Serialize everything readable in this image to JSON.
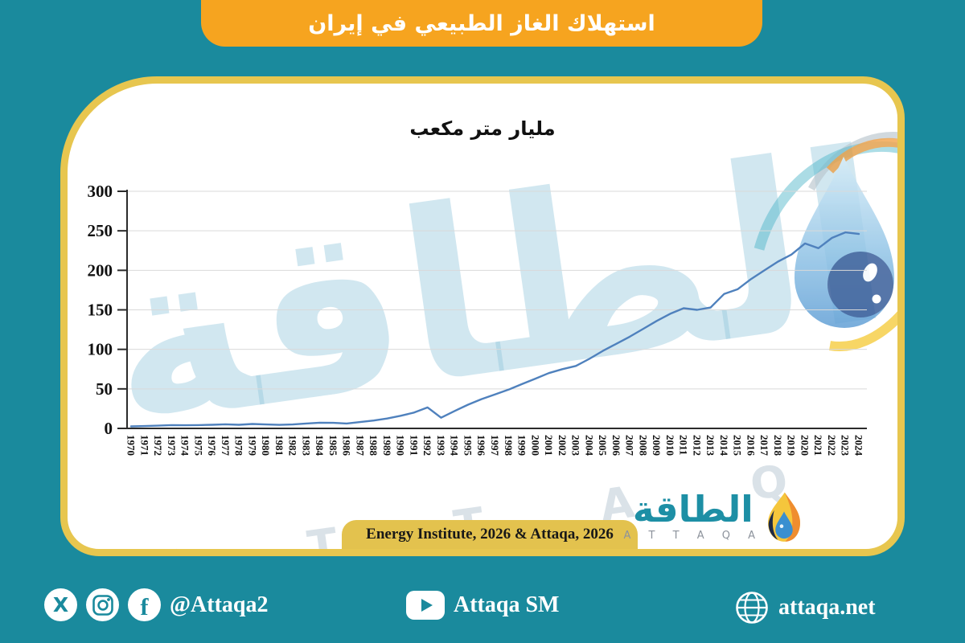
{
  "banner": {
    "title": "استهلاك الغاز الطبيعي في إيران"
  },
  "chart_data": {
    "type": "line",
    "title": "مليار متر مكعب",
    "years": [
      1970,
      1971,
      1972,
      1973,
      1974,
      1975,
      1976,
      1977,
      1978,
      1979,
      1980,
      1981,
      1982,
      1983,
      1984,
      1985,
      1986,
      1987,
      1988,
      1989,
      1990,
      1991,
      1992,
      1993,
      1994,
      1995,
      1996,
      1997,
      1998,
      1999,
      2000,
      2001,
      2002,
      2003,
      2004,
      2005,
      2006,
      2007,
      2008,
      2009,
      2010,
      2011,
      2012,
      2013,
      2014,
      2015,
      2016,
      2017,
      2018,
      2019,
      2020,
      2021,
      2022,
      2023,
      2024
    ],
    "values": [
      2.5,
      3,
      3.5,
      4.2,
      4,
      4.2,
      4.6,
      5.2,
      4.6,
      5.6,
      5,
      4.5,
      5,
      6.2,
      7.2,
      7,
      6.2,
      8,
      10,
      12.5,
      16,
      20,
      26.5,
      13.5,
      22,
      30,
      37,
      43,
      49,
      56,
      63,
      70,
      75,
      79,
      88,
      98,
      107,
      116,
      126,
      136,
      145,
      152,
      150,
      153,
      170,
      176,
      189,
      200,
      211,
      220,
      234,
      228,
      241,
      248,
      246
    ],
    "yticks": [
      0,
      50,
      100,
      150,
      200,
      250,
      300
    ],
    "ylim": [
      0,
      300
    ],
    "grid": true,
    "legend": "none",
    "line_color": "#4F81BD"
  },
  "source_bar": {
    "text": "Energy Institute, 2026 & Attaqa, 2026"
  },
  "card_logo": {
    "arabic": "الطاقة",
    "latin": "A T T A Q A"
  },
  "watermark": {
    "arabic": "الطاقة",
    "latin": "A T T A Q A"
  },
  "footer": {
    "left_handle": "@Attaqa2",
    "center_label": "Attaqa SM",
    "right_label": "attaqa.net"
  },
  "colors": {
    "page_teal": "#1A8A9D",
    "banner_orange": "#F6A41F",
    "card_gold": "#E7C64F",
    "line_blue": "#4F81BD",
    "logo_teal": "#1D8FA5"
  }
}
